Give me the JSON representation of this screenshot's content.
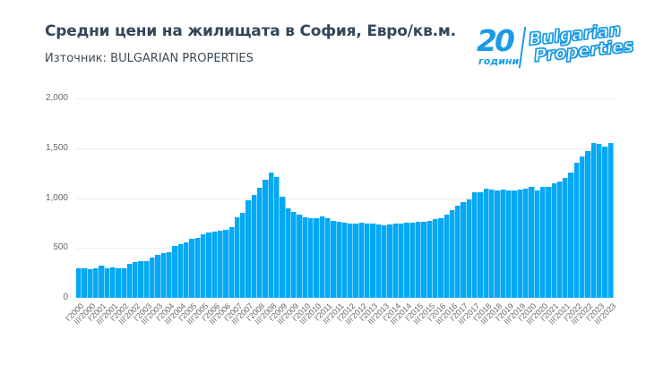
{
  "header": {
    "title": "Средни цени на жилищата в София, Евро/кв.м.",
    "subtitle": "Източник: BULGARIAN PROPERTIES"
  },
  "logo": {
    "number": "20",
    "years_label": "години",
    "brand_line1": "Bulgarian",
    "brand_line2": "Properties",
    "color": "#1a9be6"
  },
  "chart_data": {
    "type": "bar",
    "title": "Средни цени на жилищата в София, Евро/кв.м.",
    "subtitle": "Източник: BULGARIAN PROPERTIES",
    "xlabel": "",
    "ylabel": "",
    "ylim": [
      0,
      2000
    ],
    "yticks": [
      "0",
      "500",
      "1,000",
      "1,500",
      "2,000"
    ],
    "grid": true,
    "legend": null,
    "bar_color": "#03a9f4",
    "x_tick_labels": [
      "I'2000",
      "III'2000",
      "I'2001",
      "III'2001",
      "I'2002",
      "III'2002",
      "I'2003",
      "III'2003",
      "I'2004",
      "III'2004",
      "I'2005",
      "III'2005",
      "I'2006",
      "III'2006",
      "I'2007",
      "III'2007",
      "I'2008",
      "III'2008",
      "I'2009",
      "III'2009",
      "I'2010",
      "III'2010",
      "I'2011",
      "III'2011",
      "I'2012",
      "III'2012",
      "I'2013",
      "III'2013",
      "I'2014",
      "III'2014",
      "I'2015",
      "III'2015",
      "I'2016",
      "III'2016",
      "I'2017",
      "III'2017",
      "I'2018",
      "III'2018",
      "I'2019",
      "III'2019",
      "I'2020",
      "III'2020",
      "I'2021",
      "III'2021",
      "I'2022",
      "III'2022",
      "I'2023",
      "III'2023"
    ],
    "categories": [
      "I'2000",
      "II'2000",
      "III'2000",
      "IV'2000",
      "I'2001",
      "II'2001",
      "III'2001",
      "IV'2001",
      "I'2002",
      "II'2002",
      "III'2002",
      "IV'2002",
      "I'2003",
      "II'2003",
      "III'2003",
      "IV'2003",
      "I'2004",
      "II'2004",
      "III'2004",
      "IV'2004",
      "I'2005",
      "II'2005",
      "III'2005",
      "IV'2005",
      "I'2006",
      "II'2006",
      "III'2006",
      "IV'2006",
      "I'2007",
      "II'2007",
      "III'2007",
      "IV'2007",
      "I'2008",
      "II'2008",
      "III'2008",
      "IV'2008",
      "I'2009",
      "II'2009",
      "III'2009",
      "IV'2009",
      "I'2010",
      "II'2010",
      "III'2010",
      "IV'2010",
      "I'2011",
      "II'2011",
      "III'2011",
      "IV'2011",
      "I'2012",
      "II'2012",
      "III'2012",
      "IV'2012",
      "I'2013",
      "II'2013",
      "III'2013",
      "IV'2013",
      "I'2014",
      "II'2014",
      "III'2014",
      "IV'2014",
      "I'2015",
      "II'2015",
      "III'2015",
      "IV'2015",
      "I'2016",
      "II'2016",
      "III'2016",
      "IV'2016",
      "I'2017",
      "II'2017",
      "III'2017",
      "IV'2017",
      "I'2018",
      "II'2018",
      "III'2018",
      "IV'2018",
      "I'2019",
      "II'2019",
      "III'2019",
      "IV'2019",
      "I'2020",
      "II'2020",
      "III'2020",
      "IV'2020",
      "I'2021",
      "II'2021",
      "III'2021",
      "IV'2021",
      "I'2022",
      "II'2022",
      "III'2022",
      "IV'2022",
      "I'2023",
      "II'2023",
      "III'2023"
    ],
    "values": [
      295,
      293,
      290,
      297,
      320,
      295,
      305,
      295,
      295,
      345,
      360,
      365,
      370,
      400,
      430,
      445,
      460,
      520,
      540,
      560,
      590,
      605,
      640,
      655,
      665,
      675,
      680,
      710,
      810,
      850,
      980,
      1030,
      1100,
      1180,
      1260,
      1210,
      1010,
      900,
      860,
      830,
      810,
      800,
      800,
      815,
      800,
      770,
      760,
      750,
      745,
      745,
      750,
      745,
      740,
      735,
      730,
      735,
      740,
      745,
      750,
      755,
      760,
      765,
      775,
      785,
      800,
      830,
      880,
      920,
      960,
      990,
      1060,
      1060,
      1090,
      1085,
      1080,
      1085,
      1080,
      1080,
      1085,
      1090,
      1110,
      1080,
      1110,
      1115,
      1150,
      1170,
      1200,
      1260,
      1350,
      1420,
      1470,
      1550,
      1545,
      1520,
      1550
    ],
    "series": [
      {
        "name": "Евро/кв.м.",
        "values_ref": "values"
      }
    ]
  }
}
